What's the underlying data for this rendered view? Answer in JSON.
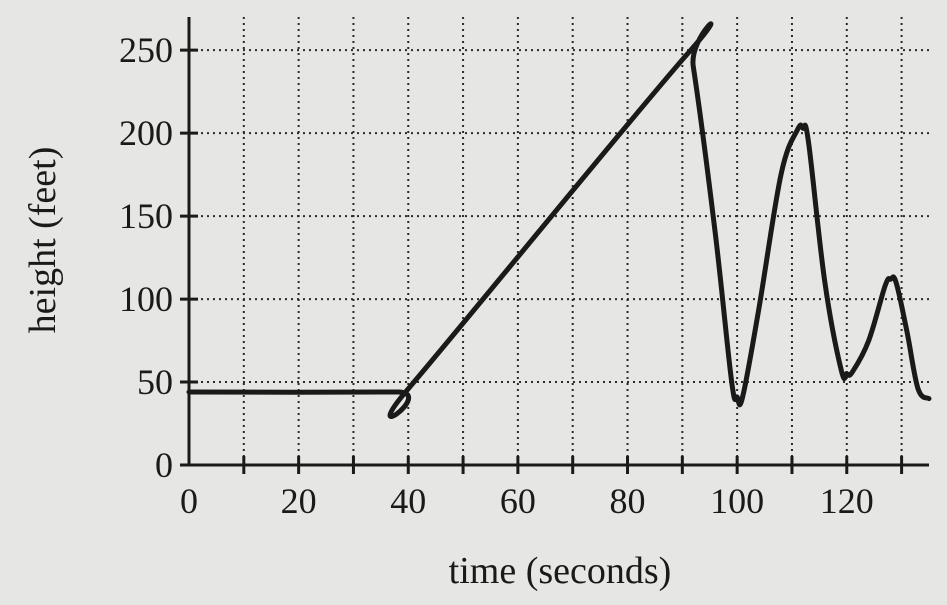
{
  "chart_data": {
    "type": "line",
    "xlabel": "time (seconds)",
    "ylabel": "height (feet)",
    "xlim": [
      0,
      135
    ],
    "ylim": [
      0,
      270
    ],
    "x_ticks": [
      0,
      20,
      40,
      60,
      80,
      100,
      120
    ],
    "x_tick_labels": [
      "0",
      "20",
      "40",
      "60",
      "80",
      "100",
      "120"
    ],
    "x_minor_ticks": [
      10,
      30,
      50,
      70,
      90,
      110,
      130
    ],
    "y_ticks": [
      0,
      50,
      100,
      150,
      200,
      250
    ],
    "y_tick_labels": [
      "0",
      "50",
      "100",
      "150",
      "200",
      "250"
    ],
    "grid": true,
    "grid_style": "dotted",
    "series": [
      {
        "x": [
          0,
          38,
          40,
          91,
          92,
          96,
          99,
          100,
          101,
          104,
          108,
          111,
          112,
          113,
          116,
          119,
          120,
          121,
          124,
          127,
          128,
          129,
          131,
          133,
          135
        ],
        "y": [
          44,
          44,
          46,
          248,
          240,
          140,
          50,
          41,
          41,
          95,
          175,
          202,
          203,
          195,
          110,
          57,
          55,
          56,
          75,
          108,
          112,
          110,
          80,
          46,
          40
        ],
        "color": "#1a1a1a"
      }
    ]
  }
}
